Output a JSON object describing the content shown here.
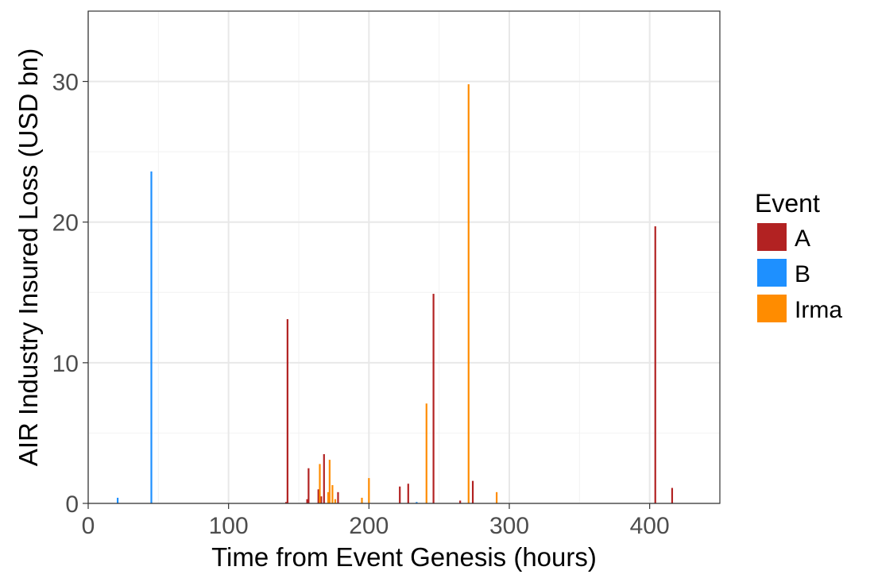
{
  "chart_data": {
    "type": "bar",
    "xlabel": "Time from Event Genesis (hours)",
    "ylabel": "AIR Industry Insured Loss (USD bn)",
    "xlim": [
      0,
      450
    ],
    "ylim": [
      0,
      35
    ],
    "x_ticks": [
      0,
      100,
      200,
      300,
      400
    ],
    "y_ticks": [
      0,
      10,
      20,
      30
    ],
    "grid": true,
    "legend": {
      "title": "Event",
      "placement": "right"
    },
    "series": [
      {
        "name": "A",
        "color": "#B22222",
        "points": [
          {
            "x": 141,
            "y": 0.1
          },
          {
            "x": 142,
            "y": 13.1
          },
          {
            "x": 156,
            "y": 0.3
          },
          {
            "x": 157,
            "y": 2.5
          },
          {
            "x": 164,
            "y": 1.0
          },
          {
            "x": 166,
            "y": 0.5
          },
          {
            "x": 168,
            "y": 3.5
          },
          {
            "x": 178,
            "y": 0.8
          },
          {
            "x": 222,
            "y": 1.2
          },
          {
            "x": 228,
            "y": 1.4
          },
          {
            "x": 246,
            "y": 14.9
          },
          {
            "x": 265,
            "y": 0.2
          },
          {
            "x": 274,
            "y": 1.6
          },
          {
            "x": 404,
            "y": 19.7
          },
          {
            "x": 416,
            "y": 1.1
          }
        ]
      },
      {
        "name": "B",
        "color": "#1E90FF",
        "points": [
          {
            "x": 21,
            "y": 0.4
          },
          {
            "x": 45,
            "y": 23.6
          },
          {
            "x": 234,
            "y": 0.1
          }
        ]
      },
      {
        "name": "Irma",
        "color": "#FF8C00",
        "points": [
          {
            "x": 165,
            "y": 2.8
          },
          {
            "x": 171,
            "y": 0.8
          },
          {
            "x": 172,
            "y": 3.1
          },
          {
            "x": 174,
            "y": 1.3
          },
          {
            "x": 176,
            "y": 0.3
          },
          {
            "x": 195,
            "y": 0.4
          },
          {
            "x": 200,
            "y": 1.8
          },
          {
            "x": 241,
            "y": 7.1
          },
          {
            "x": 271,
            "y": 29.8
          },
          {
            "x": 291,
            "y": 0.8
          }
        ]
      }
    ]
  }
}
